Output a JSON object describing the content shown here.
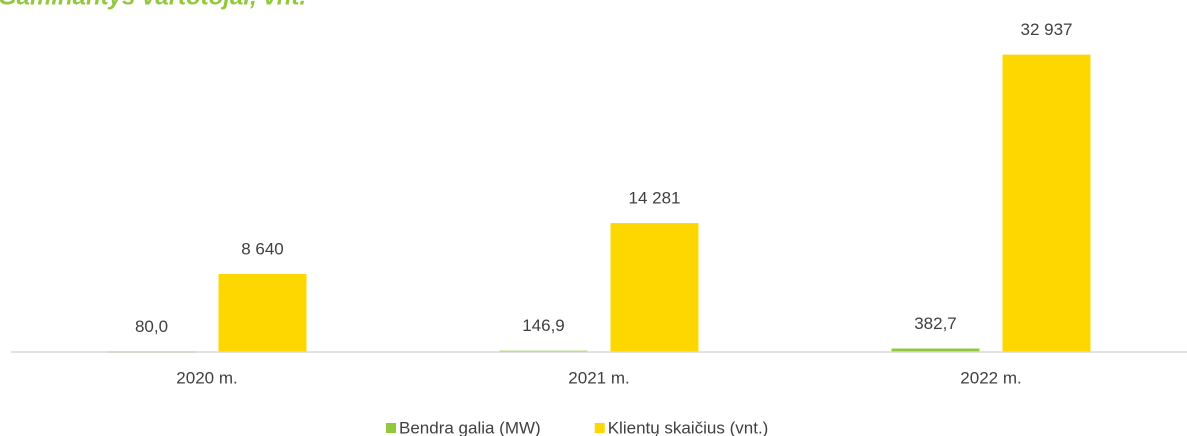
{
  "chart_data": {
    "type": "bar",
    "title": "Gaminantys vartotojai, vnt.",
    "categories": [
      "2020 m.",
      "2021 m.",
      "2022 m."
    ],
    "series": [
      {
        "name": "Bendra galia (MW)",
        "color": "#92c83e",
        "values": [
          80.0,
          146.9,
          382.7
        ],
        "value_labels": [
          "80,0",
          "146,9",
          "382,7"
        ]
      },
      {
        "name": "Klientų skaičius (vnt.)",
        "color": "#ffd700",
        "values": [
          8640,
          14281,
          32937
        ],
        "value_labels": [
          "8 640",
          "14 281",
          "32 937"
        ]
      }
    ],
    "ylim": [
      0,
      36000
    ]
  }
}
